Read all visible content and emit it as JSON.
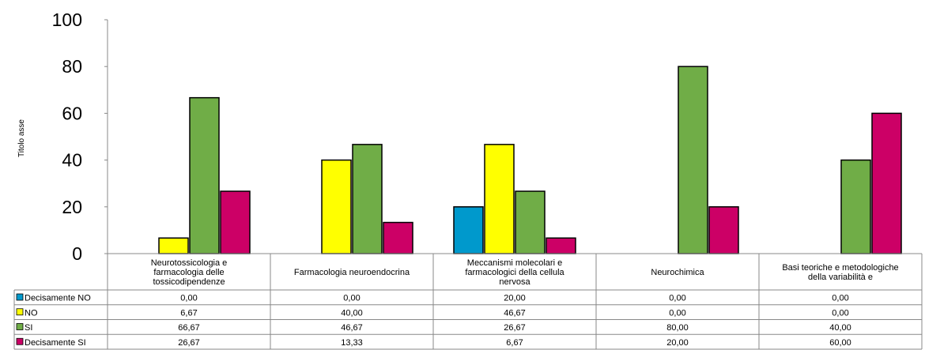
{
  "chart_data": {
    "type": "bar",
    "ylabel": "Titolo asse",
    "ylim": [
      0,
      100
    ],
    "yticks": [
      0,
      20,
      40,
      60,
      80,
      100
    ],
    "grid": false,
    "legend": "data-table",
    "categories": [
      [
        "Neurotossicologia e",
        "farmacologia delle",
        "tossicodipendenze"
      ],
      [
        "Farmacologia neuroendocrina"
      ],
      [
        "Meccanismi molecolari e",
        "farmacologici della cellula",
        "nervosa"
      ],
      [
        "Neurochimica"
      ],
      [
        "Basi teoriche e metodologiche",
        "della variabilità e"
      ]
    ],
    "series": [
      {
        "name": "Decisamente NO",
        "color": "#0099CC",
        "values": [
          0,
          0,
          20,
          0,
          0
        ],
        "labels": [
          "0,00",
          "0,00",
          "20,00",
          "0,00",
          "0,00"
        ]
      },
      {
        "name": "NO",
        "color": "#FFFF00",
        "values": [
          6.67,
          40,
          46.67,
          0,
          0
        ],
        "labels": [
          "6,67",
          "40,00",
          "46,67",
          "0,00",
          "0,00"
        ]
      },
      {
        "name": "SI",
        "color": "#70AD47",
        "values": [
          66.67,
          46.67,
          26.67,
          80,
          40
        ],
        "labels": [
          "66,67",
          "46,67",
          "26,67",
          "80,00",
          "40,00"
        ]
      },
      {
        "name": "Decisamente SI",
        "color": "#CC0066",
        "values": [
          26.67,
          13.33,
          6.67,
          20,
          60
        ],
        "labels": [
          "26,67",
          "13,33",
          "6,67",
          "20,00",
          "60,00"
        ]
      }
    ]
  }
}
